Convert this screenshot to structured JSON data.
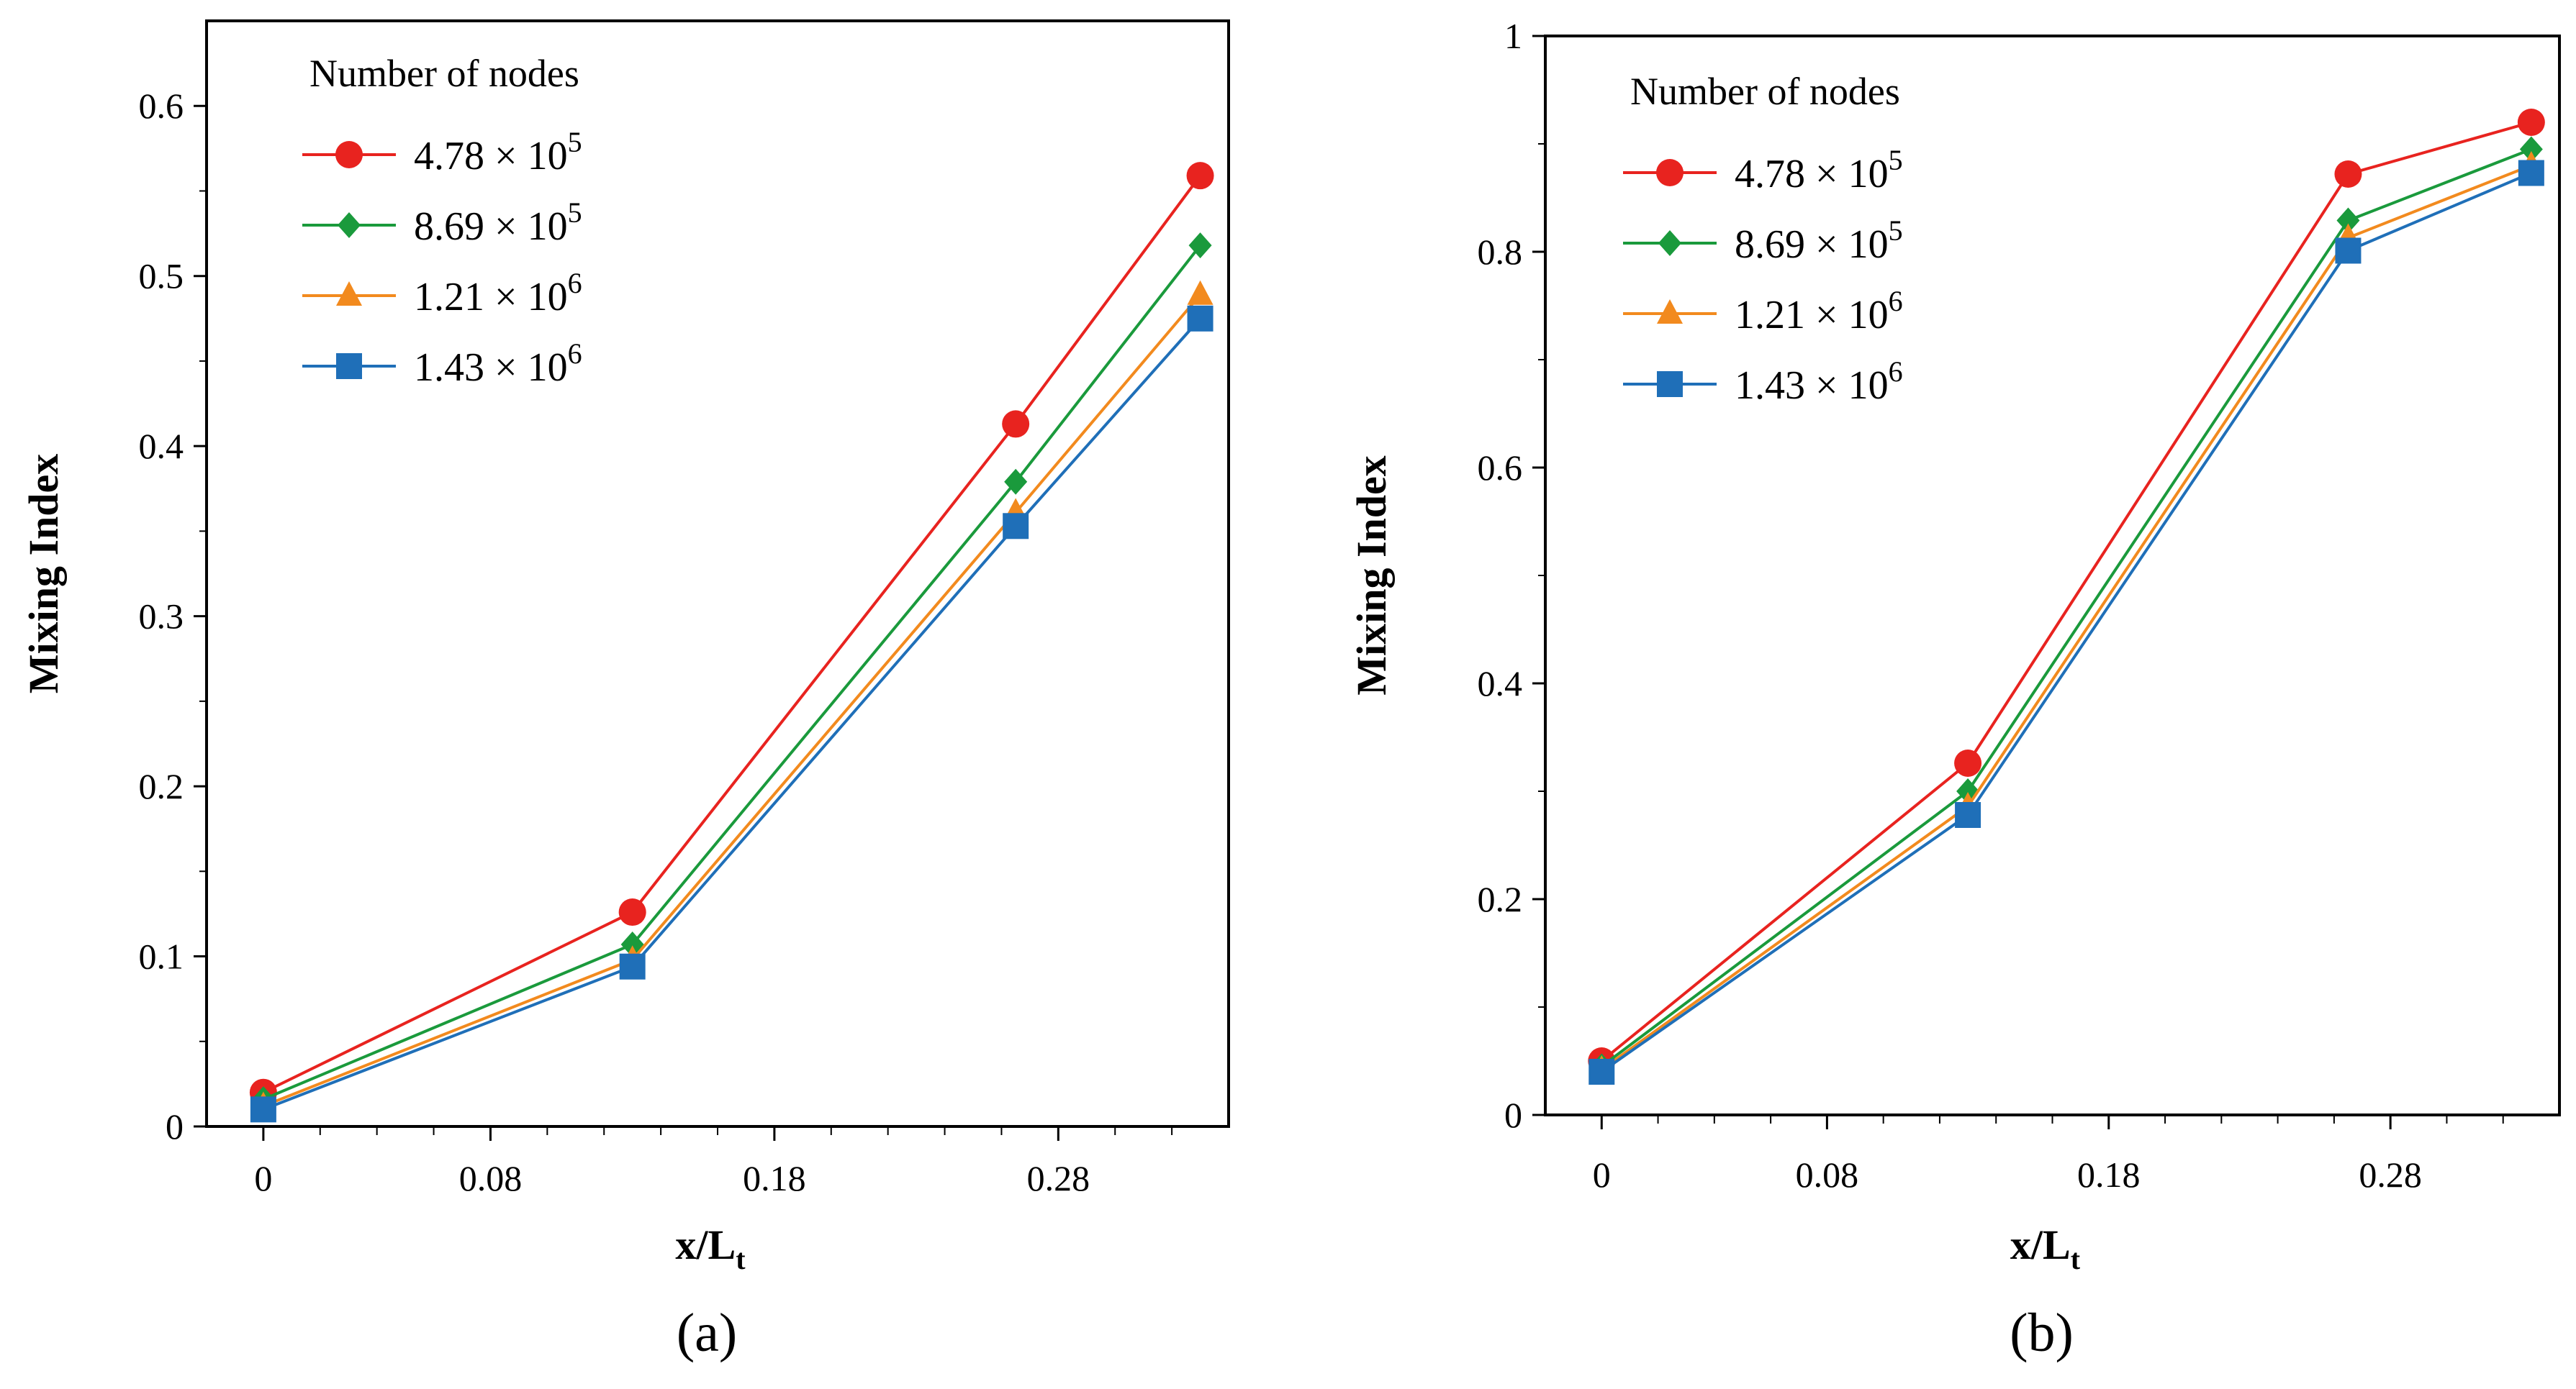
{
  "chart_data": [
    {
      "type": "line",
      "panel_label": "(a)",
      "title": "",
      "xlabel": "x/L",
      "xlabel_sub": "t",
      "ylabel": "Mixing Index",
      "xlim": [
        -0.02,
        0.34
      ],
      "ylim": [
        0,
        0.65
      ],
      "xtick_values": [
        0,
        0.08,
        0.18,
        0.28
      ],
      "xtick_labels": [
        "0",
        "0.08",
        "0.18",
        "0.28"
      ],
      "ytick_values": [
        0,
        0.1,
        0.2,
        0.3,
        0.4,
        0.5,
        0.6
      ],
      "ytick_labels": [
        "0",
        "0.1",
        "0.2",
        "0.3",
        "0.4",
        "0.5",
        "0.6"
      ],
      "legend_title": "Number of nodes",
      "legend_position": "top-left",
      "x": [
        0,
        0.13,
        0.265,
        0.33
      ],
      "series": [
        {
          "name": "4.78 × 10^5",
          "mantissa": "4.78",
          "exponent": "5",
          "color": "#e8231f",
          "marker": "circle",
          "values": [
            0.02,
            0.126,
            0.413,
            0.559
          ]
        },
        {
          "name": "8.69 × 10^5",
          "mantissa": "8.69",
          "exponent": "5",
          "color": "#1a9a3c",
          "marker": "diamond",
          "values": [
            0.016,
            0.107,
            0.379,
            0.518
          ]
        },
        {
          "name": "1.21 × 10^6",
          "mantissa": "1.21",
          "exponent": "6",
          "color": "#f28a1e",
          "marker": "triangle",
          "values": [
            0.012,
            0.098,
            0.361,
            0.489
          ]
        },
        {
          "name": "1.43 × 10^6",
          "mantissa": "1.43",
          "exponent": "6",
          "color": "#1f6fb8",
          "marker": "square",
          "values": [
            0.01,
            0.094,
            0.353,
            0.475
          ]
        }
      ]
    },
    {
      "type": "line",
      "panel_label": "(b)",
      "title": "",
      "xlabel": "x/L",
      "xlabel_sub": "t",
      "ylabel": "Mixing Index",
      "xlim": [
        -0.02,
        0.34
      ],
      "ylim": [
        0,
        1
      ],
      "xtick_values": [
        0,
        0.08,
        0.18,
        0.28
      ],
      "xtick_labels": [
        "0",
        "0.08",
        "0.18",
        "0.28"
      ],
      "ytick_values": [
        0,
        0.2,
        0.4,
        0.6,
        0.8,
        1
      ],
      "ytick_labels": [
        "0",
        "0.2",
        "0.4",
        "0.6",
        "0.8",
        "1"
      ],
      "legend_title": "Number of nodes",
      "legend_position": "top-left",
      "x": [
        0,
        0.13,
        0.265,
        0.33
      ],
      "series": [
        {
          "name": "4.78 × 10^5",
          "mantissa": "4.78",
          "exponent": "5",
          "color": "#e8231f",
          "marker": "circle",
          "values": [
            0.05,
            0.326,
            0.872,
            0.92
          ]
        },
        {
          "name": "8.69 × 10^5",
          "mantissa": "8.69",
          "exponent": "5",
          "color": "#1a9a3c",
          "marker": "diamond",
          "values": [
            0.045,
            0.3,
            0.829,
            0.895
          ]
        },
        {
          "name": "1.21 × 10^6",
          "mantissa": "1.21",
          "exponent": "6",
          "color": "#f28a1e",
          "marker": "triangle",
          "values": [
            0.042,
            0.286,
            0.813,
            0.88
          ]
        },
        {
          "name": "1.43 × 10^6",
          "mantissa": "1.43",
          "exponent": "6",
          "color": "#1f6fb8",
          "marker": "square",
          "values": [
            0.04,
            0.278,
            0.801,
            0.873
          ]
        }
      ]
    }
  ]
}
